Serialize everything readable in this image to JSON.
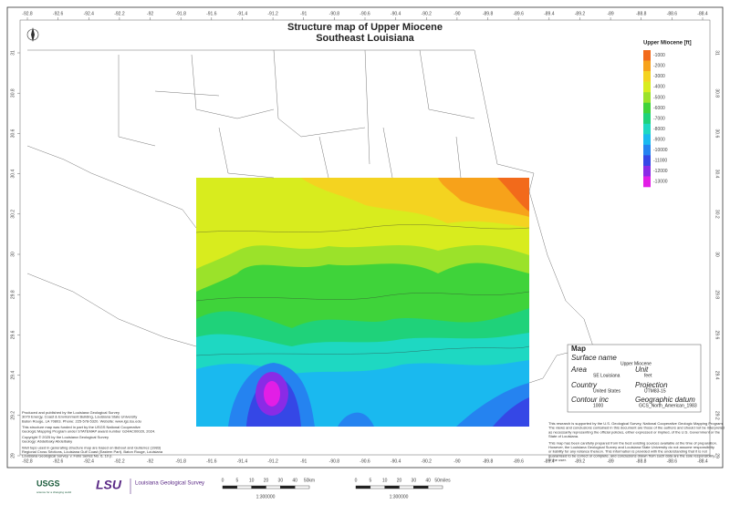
{
  "header": {
    "title": "Structure map of Upper Miocene",
    "subtitle": "Southeast Louisiana"
  },
  "frame": {
    "lon_ticks": [
      -92.8,
      -92.6,
      -92.4,
      -92.2,
      -92,
      -91.8,
      -91.6,
      -91.4,
      -91.2,
      -91,
      -90.8,
      -90.6,
      -90.4,
      -90.2,
      -90,
      -89.8,
      -89.6,
      -89.4,
      -89.2,
      -89,
      -88.8,
      -88.6,
      -88.4
    ],
    "lat_ticks": [
      31,
      30.8,
      30.6,
      30.4,
      30.2,
      30,
      29.8,
      29.6,
      29.4,
      29.2,
      29
    ]
  },
  "legend": {
    "title": "Upper Miocene [ft]",
    "levels": [
      -1000,
      -2000,
      -3000,
      -4000,
      -5000,
      -6000,
      -7000,
      -8000,
      -9000,
      -10000,
      -11000,
      -12000,
      -13000
    ],
    "colors": [
      "#f26a1b",
      "#f7a21a",
      "#f4d320",
      "#d8ec1e",
      "#9be22a",
      "#3fd33a",
      "#1fd27a",
      "#1ed8c2",
      "#1ab9ef",
      "#2583f0",
      "#3547e6",
      "#8a2be6",
      "#e21ee6"
    ]
  },
  "info_box": {
    "heading": "Map",
    "rows": [
      [
        "Surface name",
        "Upper Miocene"
      ],
      [
        "Area",
        "SE Louisiana"
      ],
      [
        "Unit",
        "feet"
      ],
      [
        "Country",
        "United States"
      ],
      [
        "Projection",
        "UTM83-15"
      ],
      [
        "Contour inc",
        "1000"
      ],
      [
        "Geographic datum",
        "GCS_North_American_1983"
      ]
    ]
  },
  "notes_left": [
    "Produced and published by the Louisiana Geological Survey",
    "3079 Energy, Coast & Environment Building, Louisiana State University",
    "Baton Rouge, LA 70803. Phone: 225-578-5320. Website: www.lgs.lsu.edu",
    "This structure map was funded in part by the USGS National Cooperative",
    "Geologic Mapping Program under STATEMAP award number G24AC00020, 2024.",
    "Copyright © 2025 by the Louisiana Geological Survey",
    "Geology: Abdelbaky Abdelbaky",
    "Well tops used in generating structure map are based on Bebout and Gutierrez (1983)",
    "Regional Cross Sections, Louisiana Gulf Coast (Eastern Part). Baton Rouge, Louisiana",
    "Louisiana Geological Survey. v. Folio Series No. 6, 10 p."
  ],
  "notes_right": [
    "This research is supported by the U.S. Geological Survey, National Cooperative Geologic Mapping Program.",
    "The views and conclusions contained in this document are those of the authors and should not be interpreted",
    "as necessarily representing the official policies, either expressed or implied, of the U.S. Government or the",
    "State of Louisiana.",
    "This map has been carefully prepared from the best existing sources available at the time of preparation.",
    "However, the Louisiana Geological Survey and Louisiana State University do not assume responsibility",
    "or liability for any reliance thereon. This information is provided with the understanding that it is not",
    "guaranteed to be correct or complete, and conclusions drawn from such data are the sole responsibility",
    "of the user."
  ],
  "logos": {
    "usgs": "USGS",
    "usgs_tag": "science for a changing world",
    "lsu": "LSU",
    "lgs": "Louisiana Geological Survey"
  },
  "scale_km": {
    "labels": [
      "0",
      "5",
      "10",
      "20",
      "30",
      "40",
      "50km"
    ],
    "ratio": "1:300000"
  },
  "scale_mi": {
    "labels": [
      "0",
      "5",
      "10",
      "20",
      "30",
      "40",
      "50miles"
    ],
    "ratio": "1:300000"
  }
}
